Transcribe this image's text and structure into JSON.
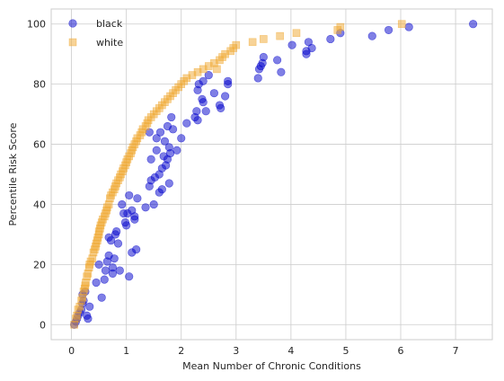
{
  "chart_data": {
    "type": "scatter",
    "xlabel": "Mean Number of Chronic Conditions",
    "ylabel": "Percentile Risk Score",
    "xlim": [
      -0.37,
      7.67
    ],
    "ylim": [
      -5,
      105
    ],
    "xticks": [
      0,
      1,
      2,
      3,
      4,
      5,
      6,
      7
    ],
    "yticks": [
      0,
      20,
      40,
      60,
      80,
      100
    ],
    "grid": true,
    "legend_position": "top-left",
    "series": [
      {
        "name": "black",
        "color": "#0000cc",
        "marker": "circle",
        "points": [
          [
            0.05,
            0
          ],
          [
            0.08,
            1
          ],
          [
            0.1,
            2
          ],
          [
            0.12,
            3
          ],
          [
            0.15,
            4
          ],
          [
            0.18,
            5
          ],
          [
            0.2,
            7
          ],
          [
            0.22,
            8
          ],
          [
            0.2,
            10
          ],
          [
            0.25,
            11
          ],
          [
            0.3,
            2
          ],
          [
            0.28,
            3
          ],
          [
            0.33,
            6
          ],
          [
            0.45,
            14
          ],
          [
            0.5,
            20
          ],
          [
            0.55,
            9
          ],
          [
            0.6,
            15
          ],
          [
            0.62,
            18
          ],
          [
            0.65,
            21
          ],
          [
            0.68,
            23
          ],
          [
            0.68,
            29
          ],
          [
            0.72,
            28
          ],
          [
            0.75,
            17
          ],
          [
            0.75,
            19
          ],
          [
            0.78,
            22
          ],
          [
            0.8,
            30
          ],
          [
            0.82,
            31
          ],
          [
            0.85,
            27
          ],
          [
            0.88,
            18
          ],
          [
            0.92,
            40
          ],
          [
            0.95,
            37
          ],
          [
            0.98,
            34
          ],
          [
            1.0,
            33
          ],
          [
            1.02,
            37
          ],
          [
            1.05,
            16
          ],
          [
            1.05,
            43
          ],
          [
            1.1,
            24
          ],
          [
            1.1,
            38
          ],
          [
            1.15,
            35
          ],
          [
            1.15,
            36
          ],
          [
            1.18,
            25
          ],
          [
            1.2,
            42
          ],
          [
            1.35,
            39
          ],
          [
            1.42,
            46
          ],
          [
            1.45,
            48
          ],
          [
            1.45,
            55
          ],
          [
            1.42,
            64
          ],
          [
            1.5,
            40
          ],
          [
            1.52,
            49
          ],
          [
            1.55,
            58
          ],
          [
            1.55,
            62
          ],
          [
            1.6,
            44
          ],
          [
            1.6,
            50
          ],
          [
            1.62,
            64
          ],
          [
            1.65,
            45
          ],
          [
            1.65,
            52
          ],
          [
            1.68,
            56
          ],
          [
            1.7,
            61
          ],
          [
            1.72,
            53
          ],
          [
            1.75,
            55
          ],
          [
            1.75,
            66
          ],
          [
            1.78,
            47
          ],
          [
            1.78,
            59
          ],
          [
            1.8,
            57
          ],
          [
            1.82,
            69
          ],
          [
            1.85,
            65
          ],
          [
            1.92,
            58
          ],
          [
            2.0,
            62
          ],
          [
            2.1,
            67
          ],
          [
            2.25,
            69
          ],
          [
            2.28,
            71
          ],
          [
            2.3,
            68
          ],
          [
            2.3,
            78
          ],
          [
            2.32,
            80
          ],
          [
            2.38,
            75
          ],
          [
            2.4,
            74
          ],
          [
            2.4,
            81
          ],
          [
            2.45,
            71
          ],
          [
            2.5,
            83
          ],
          [
            2.6,
            77
          ],
          [
            2.7,
            73
          ],
          [
            2.72,
            72
          ],
          [
            2.8,
            76
          ],
          [
            2.85,
            81
          ],
          [
            2.85,
            80
          ],
          [
            3.4,
            82
          ],
          [
            3.42,
            85
          ],
          [
            3.45,
            86
          ],
          [
            3.48,
            87
          ],
          [
            3.5,
            89
          ],
          [
            3.75,
            88
          ],
          [
            3.82,
            84
          ],
          [
            4.02,
            93
          ],
          [
            4.28,
            91
          ],
          [
            4.28,
            90
          ],
          [
            4.32,
            94
          ],
          [
            4.38,
            92
          ],
          [
            4.72,
            95
          ],
          [
            4.9,
            97
          ],
          [
            5.48,
            96
          ],
          [
            5.78,
            98
          ],
          [
            6.15,
            99
          ],
          [
            7.32,
            100
          ]
        ]
      },
      {
        "name": "white",
        "color": "#f0a830",
        "marker": "square",
        "points": [
          [
            0.05,
            0
          ],
          [
            0.08,
            2
          ],
          [
            0.1,
            3
          ],
          [
            0.12,
            5
          ],
          [
            0.15,
            6
          ],
          [
            0.18,
            8
          ],
          [
            0.2,
            9
          ],
          [
            0.22,
            11
          ],
          [
            0.24,
            12
          ],
          [
            0.25,
            13
          ],
          [
            0.26,
            14
          ],
          [
            0.28,
            16
          ],
          [
            0.3,
            17
          ],
          [
            0.32,
            19
          ],
          [
            0.33,
            20
          ],
          [
            0.35,
            21
          ],
          [
            0.38,
            22
          ],
          [
            0.4,
            24
          ],
          [
            0.42,
            25
          ],
          [
            0.44,
            26
          ],
          [
            0.45,
            27
          ],
          [
            0.47,
            28
          ],
          [
            0.48,
            29
          ],
          [
            0.5,
            30
          ],
          [
            0.5,
            31
          ],
          [
            0.52,
            32
          ],
          [
            0.53,
            33
          ],
          [
            0.55,
            34
          ],
          [
            0.57,
            35
          ],
          [
            0.6,
            36
          ],
          [
            0.62,
            37
          ],
          [
            0.64,
            38
          ],
          [
            0.65,
            39
          ],
          [
            0.68,
            40
          ],
          [
            0.7,
            42
          ],
          [
            0.72,
            43
          ],
          [
            0.75,
            44
          ],
          [
            0.78,
            45
          ],
          [
            0.8,
            46
          ],
          [
            0.82,
            47
          ],
          [
            0.85,
            48
          ],
          [
            0.88,
            49
          ],
          [
            0.9,
            50
          ],
          [
            0.93,
            51
          ],
          [
            0.95,
            52
          ],
          [
            0.98,
            53
          ],
          [
            1.0,
            54
          ],
          [
            1.02,
            55
          ],
          [
            1.05,
            56
          ],
          [
            1.08,
            57
          ],
          [
            1.1,
            58
          ],
          [
            1.12,
            59
          ],
          [
            1.15,
            60
          ],
          [
            1.18,
            61
          ],
          [
            1.2,
            62
          ],
          [
            1.25,
            63
          ],
          [
            1.28,
            64
          ],
          [
            1.3,
            65
          ],
          [
            1.35,
            66
          ],
          [
            1.38,
            67
          ],
          [
            1.4,
            68
          ],
          [
            1.45,
            69
          ],
          [
            1.5,
            70
          ],
          [
            1.55,
            71
          ],
          [
            1.6,
            72
          ],
          [
            1.65,
            73
          ],
          [
            1.7,
            74
          ],
          [
            1.75,
            75
          ],
          [
            1.8,
            76
          ],
          [
            1.85,
            77
          ],
          [
            1.9,
            78
          ],
          [
            1.95,
            79
          ],
          [
            2.0,
            80
          ],
          [
            2.05,
            81
          ],
          [
            2.1,
            82
          ],
          [
            2.2,
            83
          ],
          [
            2.3,
            84
          ],
          [
            2.4,
            85
          ],
          [
            2.5,
            86
          ],
          [
            2.6,
            87
          ],
          [
            2.65,
            85
          ],
          [
            2.7,
            88
          ],
          [
            2.75,
            89
          ],
          [
            2.8,
            90
          ],
          [
            2.9,
            91
          ],
          [
            2.95,
            92
          ],
          [
            3.0,
            93
          ],
          [
            3.3,
            94
          ],
          [
            3.5,
            95
          ],
          [
            3.8,
            96
          ],
          [
            4.1,
            97
          ],
          [
            4.85,
            98
          ],
          [
            4.9,
            99
          ],
          [
            6.02,
            100
          ]
        ]
      }
    ]
  }
}
